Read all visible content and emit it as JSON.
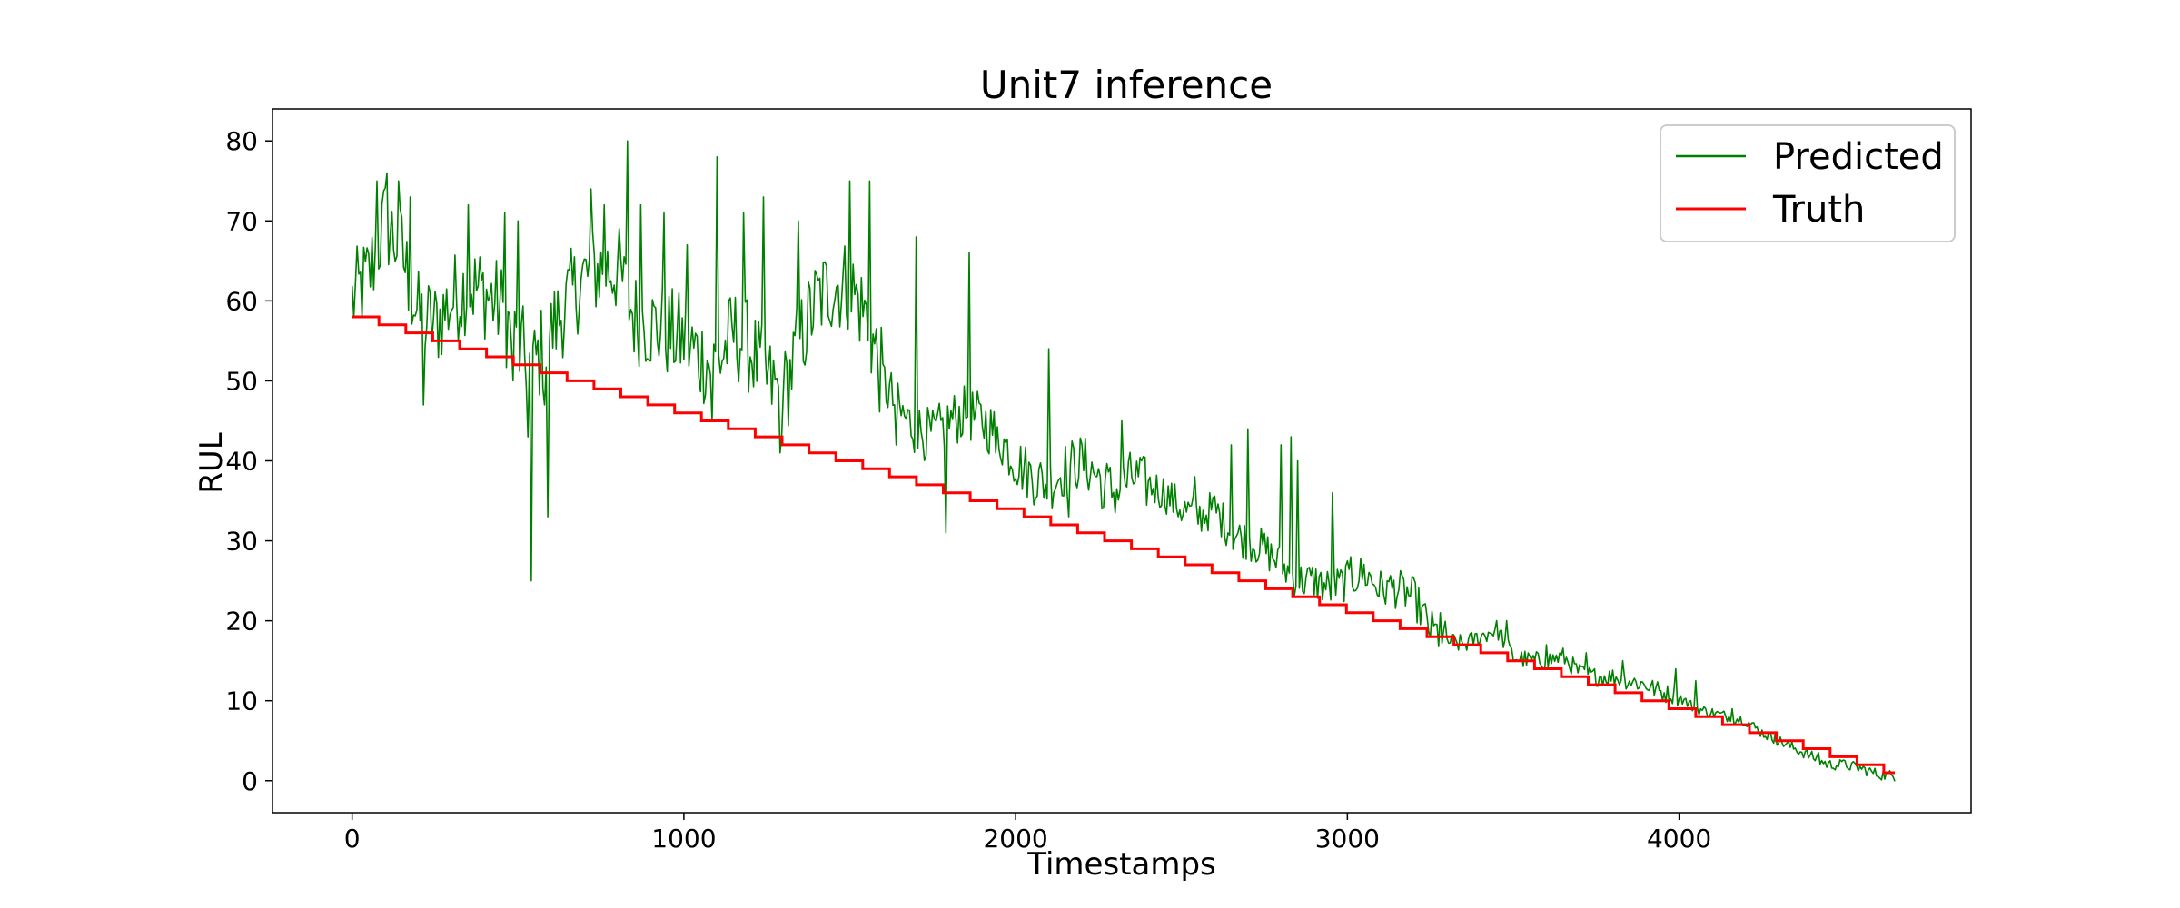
{
  "chart_data": {
    "type": "line",
    "title": "Unit7 inference",
    "xlabel": "Timestamps",
    "ylabel": "RUL",
    "xlim": [
      -240,
      4880
    ],
    "ylim": [
      -4,
      84
    ],
    "xticks": [
      0,
      1000,
      2000,
      3000,
      4000
    ],
    "yticks": [
      0,
      10,
      20,
      30,
      40,
      50,
      60,
      70,
      80
    ],
    "grid": false,
    "legend_position": "top-right",
    "series": [
      {
        "name": "Predicted",
        "color": "#008000",
        "kind": "noisy-line",
        "points": [
          [
            0,
            60
          ],
          [
            50,
            63
          ],
          [
            100,
            70
          ],
          [
            150,
            66
          ],
          [
            200,
            58
          ],
          [
            250,
            57
          ],
          [
            300,
            60
          ],
          [
            350,
            62
          ],
          [
            400,
            61
          ],
          [
            450,
            59
          ],
          [
            500,
            54
          ],
          [
            550,
            52
          ],
          [
            600,
            56
          ],
          [
            650,
            60
          ],
          [
            700,
            63
          ],
          [
            750,
            64
          ],
          [
            800,
            64
          ],
          [
            850,
            58
          ],
          [
            900,
            57
          ],
          [
            950,
            56
          ],
          [
            1000,
            55
          ],
          [
            1050,
            53
          ],
          [
            1100,
            52
          ],
          [
            1150,
            56
          ],
          [
            1200,
            54
          ],
          [
            1250,
            50
          ],
          [
            1300,
            48
          ],
          [
            1350,
            55
          ],
          [
            1400,
            60
          ],
          [
            1450,
            62
          ],
          [
            1500,
            62
          ],
          [
            1550,
            58
          ],
          [
            1600,
            50
          ],
          [
            1650,
            46
          ],
          [
            1700,
            44
          ],
          [
            1750,
            43
          ],
          [
            1800,
            45
          ],
          [
            1850,
            46
          ],
          [
            1900,
            45
          ],
          [
            1950,
            43
          ],
          [
            2000,
            40
          ],
          [
            2050,
            38
          ],
          [
            2100,
            37
          ],
          [
            2150,
            39
          ],
          [
            2200,
            40
          ],
          [
            2250,
            38
          ],
          [
            2300,
            36
          ],
          [
            2350,
            38
          ],
          [
            2400,
            37
          ],
          [
            2450,
            36
          ],
          [
            2500,
            34
          ],
          [
            2550,
            33
          ],
          [
            2600,
            34
          ],
          [
            2650,
            31
          ],
          [
            2700,
            30
          ],
          [
            2750,
            29
          ],
          [
            2800,
            27
          ],
          [
            2850,
            25
          ],
          [
            2900,
            25
          ],
          [
            2950,
            24
          ],
          [
            3000,
            25
          ],
          [
            3050,
            26
          ],
          [
            3100,
            24
          ],
          [
            3150,
            24
          ],
          [
            3200,
            23
          ],
          [
            3250,
            19
          ],
          [
            3300,
            17.5
          ],
          [
            3350,
            17
          ],
          [
            3400,
            18
          ],
          [
            3450,
            19
          ],
          [
            3500,
            15.5
          ],
          [
            3550,
            15
          ],
          [
            3600,
            15
          ],
          [
            3650,
            15.5
          ],
          [
            3700,
            13.5
          ],
          [
            3750,
            13
          ],
          [
            3800,
            13
          ],
          [
            3850,
            12.5
          ],
          [
            3900,
            12
          ],
          [
            3950,
            11
          ],
          [
            4000,
            10.5
          ],
          [
            4050,
            9
          ],
          [
            4100,
            8.5
          ],
          [
            4150,
            8
          ],
          [
            4200,
            7.5
          ],
          [
            4250,
            6
          ],
          [
            4300,
            5
          ],
          [
            4350,
            4
          ],
          [
            4400,
            3
          ],
          [
            4450,
            2
          ],
          [
            4500,
            2
          ],
          [
            4550,
            1.5
          ],
          [
            4600,
            0.8
          ],
          [
            4650,
            0.6
          ]
        ],
        "spikes": [
          [
            75,
            75
          ],
          [
            105,
            76
          ],
          [
            140,
            75
          ],
          [
            175,
            73
          ],
          [
            215,
            47
          ],
          [
            350,
            72
          ],
          [
            460,
            71
          ],
          [
            485,
            50
          ],
          [
            500,
            70
          ],
          [
            530,
            43
          ],
          [
            540,
            25
          ],
          [
            580,
            47
          ],
          [
            590,
            33
          ],
          [
            720,
            74
          ],
          [
            760,
            72
          ],
          [
            830,
            80
          ],
          [
            870,
            72
          ],
          [
            940,
            71
          ],
          [
            1010,
            67
          ],
          [
            1085,
            45
          ],
          [
            1100,
            78
          ],
          [
            1180,
            71
          ],
          [
            1240,
            73
          ],
          [
            1290,
            41
          ],
          [
            1300,
            49
          ],
          [
            1345,
            70
          ],
          [
            1500,
            75
          ],
          [
            1560,
            75
          ],
          [
            1640,
            42
          ],
          [
            1700,
            68
          ],
          [
            1790,
            31
          ],
          [
            1860,
            66
          ],
          [
            1940,
            41
          ],
          [
            2100,
            54
          ],
          [
            2160,
            33
          ],
          [
            2260,
            34
          ],
          [
            2320,
            45
          ],
          [
            2380,
            40
          ],
          [
            2540,
            38
          ],
          [
            2650,
            42
          ],
          [
            2700,
            44
          ],
          [
            2800,
            42
          ],
          [
            2830,
            43
          ],
          [
            2850,
            40
          ],
          [
            2955,
            36
          ],
          [
            3010,
            28
          ],
          [
            3120,
            25
          ],
          [
            3280,
            21
          ],
          [
            3480,
            20
          ],
          [
            3600,
            17
          ],
          [
            3720,
            16
          ],
          [
            3830,
            15
          ],
          [
            3990,
            14
          ],
          [
            4050,
            12.5
          ],
          [
            4160,
            9
          ],
          [
            4290,
            6
          ],
          [
            4420,
            3.5
          ],
          [
            4500,
            2.5
          ]
        ]
      },
      {
        "name": "Truth",
        "color": "#ff0000",
        "kind": "step",
        "step_width": 81,
        "start": 58,
        "end": 0
      }
    ]
  }
}
